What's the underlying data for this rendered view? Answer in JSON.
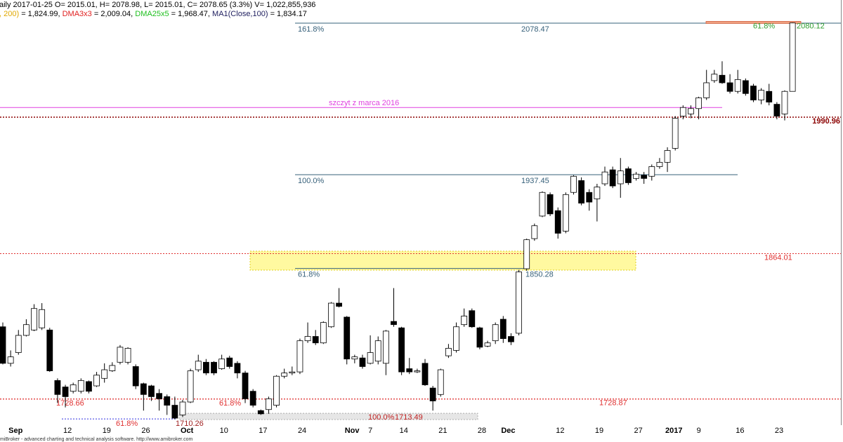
{
  "chart_data": {
    "type": "candlestick",
    "header": [
      [
        {
          "text": "aily 2017-01-25 O= 2015.01, H= 2078.98, L= 2015.01, C= 2078.65 (3.3%) V= 1,022,855,936",
          "color": "#000000"
        }
      ],
      [
        {
          "text": ", 200)",
          "color": "#e0a800"
        },
        {
          "text": " = 1,824.99, ",
          "color": "#000000"
        },
        {
          "text": "DMA3x3",
          "color": "#e02020"
        },
        {
          "text": " = 2,009.04, ",
          "color": "#000000"
        },
        {
          "text": "DMA25x5",
          "color": "#20c020"
        },
        {
          "text": " = 1,968.47, ",
          "color": "#000000"
        },
        {
          "text": "MA1(Close,100)",
          "color": "#202060"
        },
        {
          "text": " = 1,834.17",
          "color": "#000000"
        }
      ]
    ],
    "footer": "miBroker - advanced charting and technical analysis software. http://www.amibroker.com",
    "categories": [
      null,
      "Sep",
      null,
      null,
      null,
      null,
      null,
      null,
      "12",
      null,
      null,
      null,
      null,
      "19",
      null,
      null,
      null,
      null,
      "26",
      null,
      null,
      null,
      null,
      "Oct",
      null,
      null,
      null,
      null,
      "10",
      null,
      null,
      null,
      null,
      "17",
      null,
      null,
      null,
      null,
      "24",
      null,
      null,
      null,
      null,
      null,
      "Nov",
      null,
      null,
      "7",
      null,
      null,
      null,
      "14",
      null,
      null,
      null,
      null,
      "21",
      null,
      null,
      null,
      null,
      "28",
      null,
      null,
      "Dec",
      null,
      null,
      null,
      null,
      null,
      null,
      "12",
      null,
      null,
      null,
      null,
      "19",
      null,
      null,
      null,
      null,
      "27",
      null,
      null,
      null,
      "2017",
      null,
      null,
      null,
      "9",
      null,
      null,
      null,
      null,
      "16",
      null,
      null,
      null,
      null,
      "23",
      null,
      null
    ],
    "open": [
      1796,
      1762,
      1772,
      1788,
      1793,
      1795,
      1793,
      1746,
      1740,
      1736,
      1736,
      1745,
      1741,
      1748,
      1755,
      1763,
      1763,
      1759,
      1743,
      1741,
      1734,
      1731,
      1723,
      1714,
      1726,
      1756,
      1763,
      1763,
      1757,
      1767,
      1762,
      1753,
      1736,
      1718,
      1719,
      1723,
      1750,
      1753,
      1754,
      1783,
      1787,
      1781,
      1796,
      1818,
      1805,
      1766,
      1767,
      1762,
      1764,
      1762,
      1801,
      1795,
      1757,
      1754,
      1762,
      1739,
      1733,
      1769,
      1774,
      1798,
      1811,
      1795,
      1778,
      1783,
      1803,
      1787,
      1790,
      1850,
      1878,
      1899,
      1919,
      1904,
      1885,
      1921,
      1932,
      1921,
      1915,
      1929,
      1942,
      1929,
      1943,
      1934,
      1937,
      1936,
      1945,
      1949,
      1962,
      1992,
      1994,
      1999,
      2009,
      2025,
      2030,
      2023,
      2015,
      2025,
      2020,
      2007,
      2015,
      2003,
      1994,
      2015.01
    ],
    "high": [
      1800,
      1774,
      1793,
      1803,
      1817,
      1818,
      1795,
      1748,
      1742,
      1744,
      1748,
      1746,
      1754,
      1762,
      1763,
      1779,
      1777,
      1761,
      1744,
      1742,
      1738,
      1733,
      1731,
      1728,
      1757,
      1770,
      1766,
      1764,
      1770,
      1769,
      1764,
      1755,
      1738,
      1719,
      1731,
      1751,
      1757,
      1759,
      1785,
      1800,
      1793,
      1801,
      1819,
      1832,
      1806,
      1770,
      1770,
      1788,
      1787,
      1793,
      1832,
      1796,
      1767,
      1757,
      1766,
      1741,
      1757,
      1780,
      1800,
      1813,
      1813,
      1796,
      1783,
      1800,
      1806,
      1790,
      1849,
      1878,
      1892,
      1922,
      1921,
      1907,
      1921,
      1937,
      1935,
      1924,
      1929,
      1945,
      1945,
      1953,
      1945,
      1940,
      1940,
      1947,
      1953,
      1963,
      1992,
      2002,
      2002,
      2010,
      2035,
      2035,
      2043,
      2031,
      2035,
      2027,
      2022,
      2018,
      2022,
      2005,
      2016,
      2078.98
    ],
    "low": [
      1761,
      1759,
      1770,
      1787,
      1792,
      1793,
      1754,
      1725,
      1721,
      1734,
      1734,
      1734,
      1740,
      1744,
      1754,
      1761,
      1761,
      1738,
      1718,
      1727,
      1718,
      1714,
      1710,
      1712,
      1725,
      1754,
      1751,
      1751,
      1756,
      1757,
      1748,
      1725,
      1721,
      1714,
      1715,
      1721,
      1748,
      1751,
      1752,
      1781,
      1779,
      1780,
      1795,
      1814,
      1761,
      1762,
      1757,
      1761,
      1761,
      1751,
      1796,
      1751,
      1752,
      1753,
      1741,
      1718,
      1731,
      1767,
      1772,
      1796,
      1795,
      1775,
      1777,
      1780,
      1781,
      1779,
      1788,
      1848,
      1876,
      1898,
      1899,
      1878,
      1883,
      1919,
      1909,
      1904,
      1894,
      1927,
      1925,
      1916,
      1928,
      1932,
      1929,
      1932,
      1943,
      1940,
      1960,
      1989,
      1990,
      1989,
      2007,
      2023,
      2022,
      2013,
      2013,
      2011,
      2005,
      2003,
      2002,
      1989,
      1988,
      2015.01
    ],
    "close": [
      1762,
      1768,
      1788,
      1798,
      1813,
      1812,
      1755,
      1733,
      1731,
      1742,
      1746,
      1736,
      1751,
      1756,
      1760,
      1777,
      1776,
      1741,
      1733,
      1731,
      1729,
      1723,
      1711,
      1726,
      1755,
      1764,
      1753,
      1753,
      1766,
      1759,
      1753,
      1729,
      1723,
      1715,
      1729,
      1750,
      1753,
      1754,
      1783,
      1787,
      1781,
      1800,
      1818,
      1815,
      1766,
      1768,
      1759,
      1772,
      1783,
      1792,
      1798,
      1754,
      1754,
      1755,
      1742,
      1727,
      1756,
      1776,
      1796,
      1806,
      1796,
      1777,
      1781,
      1798,
      1785,
      1782,
      1847,
      1877,
      1890,
      1921,
      1901,
      1883,
      1919,
      1936,
      1911,
      1912,
      1926,
      1940,
      1927,
      1941,
      1930,
      1938,
      1934,
      1945,
      1949,
      1960,
      1990,
      2000,
      1999,
      2009,
      2023,
      2031,
      2023,
      2015,
      2026,
      2013,
      2007,
      2016,
      2005,
      1992,
      2015,
      2078.65
    ],
    "up_color": "#ffffff",
    "down_color": "#000000",
    "ylim": [
      1688.8,
      2100
    ],
    "fib": [
      {
        "pct": "161.8%",
        "value": 2078.47
      },
      {
        "pct": "100.0%",
        "value": 1937.45
      },
      {
        "pct": "61.8%",
        "value": 1850.28
      }
    ],
    "fib_color": "#36607a",
    "resistance": {
      "label": "szczyt z marca 2016",
      "value": 2000,
      "color": "#e040e0"
    },
    "levels": [
      {
        "value": 1990.96,
        "color": "#8b0000"
      },
      {
        "value": 1864.01,
        "color": "#e03030"
      },
      {
        "value": 1728.66,
        "color": "#e03030",
        "pct": "61.8%"
      },
      {
        "value": 1728.87,
        "color": "#e03030"
      }
    ],
    "zone": {
      "top": 1866.3,
      "bottom": 1848.7,
      "color": "#fff9a0"
    },
    "low_zone": {
      "pct": "100.0%",
      "value": 1713.49,
      "top": 1715.5,
      "bottom": 1709.7,
      "color": "#e6e6e6"
    },
    "low_mark": {
      "pct": "61.8%",
      "value": 1710.26,
      "color": "#3030e0"
    },
    "top_mark": {
      "pct": "61.8%",
      "value": 2080.12,
      "color": "#2e9e2e"
    }
  }
}
